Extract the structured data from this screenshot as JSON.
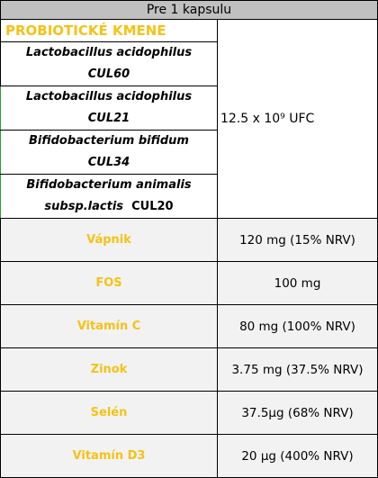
{
  "header": "Pre 1 kapsulu",
  "section_title": "PROBIOTICKÉ KMENE",
  "strains": [
    {
      "line1": "Lactobacillus acidophilus",
      "line2": "CUL60",
      "line2_suffix": ""
    },
    {
      "line1": "Lactobacillus acidophilus",
      "line2": "CUL21",
      "line2_suffix": ""
    },
    {
      "line1": "Bifidobacterium bifidum",
      "line2": "CUL34",
      "line2_suffix": ""
    },
    {
      "line1": "Bifidobacterium animalis",
      "line2": "subsp.lactis",
      "line2_suffix": "CUL20"
    }
  ],
  "probiotic_amount": "12.5 x 10⁹ UFC",
  "nutrients": [
    {
      "name": "Vápnik",
      "value": "120 mg (15% NRV)"
    },
    {
      "name": "FOS",
      "value": "100 mg"
    },
    {
      "name": "Vitamín C",
      "value": "80 mg (100% NRV)"
    },
    {
      "name": "Zinok",
      "value": "3.75 mg (37.5% NRV)"
    },
    {
      "name": "Selén",
      "value": "37.5µg (68% NRV)"
    },
    {
      "name": "Vitamín D3",
      "value": "20 µg (400% NRV)"
    }
  ],
  "colors": {
    "accent_yellow": "#f5c216",
    "header_gray": "#c0c0c0",
    "row_gray": "#f2f2f2",
    "strain_border_green": "#2e9a3c"
  }
}
